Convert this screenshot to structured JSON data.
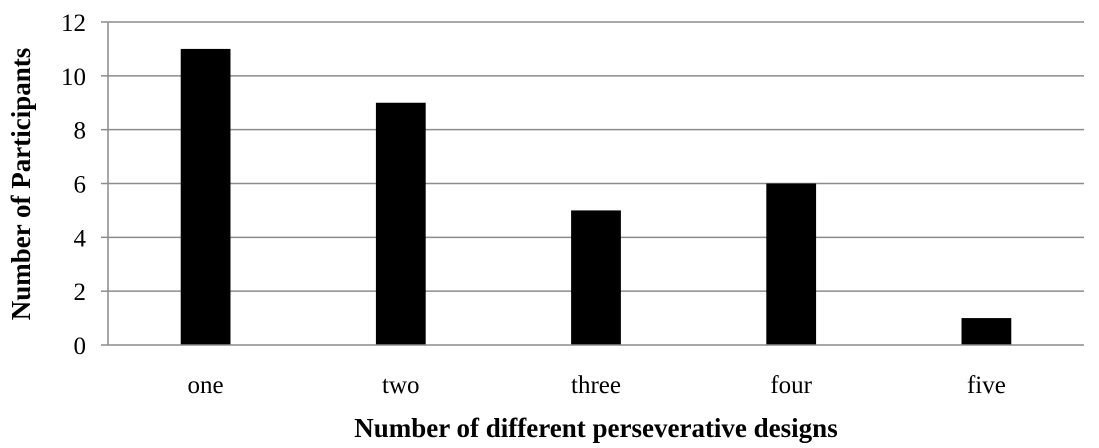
{
  "chart_data": {
    "type": "bar",
    "categories": [
      "one",
      "two",
      "three",
      "four",
      "five"
    ],
    "values": [
      11,
      9,
      5,
      6,
      1
    ],
    "title": "",
    "xlabel": "Number of different perseverative designs",
    "ylabel": "Number of Participants",
    "ylim": [
      0,
      12
    ],
    "yticks": [
      0,
      2,
      4,
      6,
      8,
      10,
      12
    ],
    "grid": true,
    "legend": "none",
    "bar_color": "#000000",
    "grid_color": "#8c8c8c"
  }
}
